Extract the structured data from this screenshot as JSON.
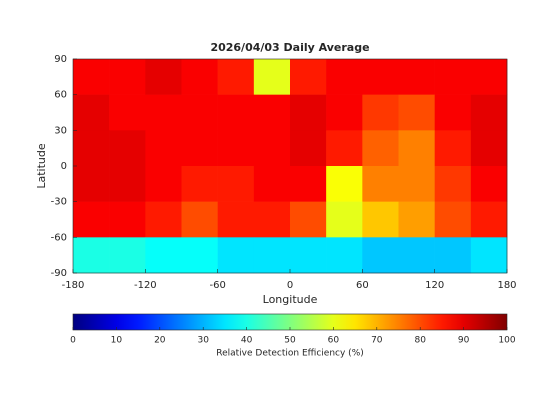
{
  "chart_data": {
    "type": "heatmap",
    "title": "2026/04/03 Daily Average",
    "xlabel": "Longitude",
    "ylabel": "Latitude",
    "xlim": [
      -180,
      180
    ],
    "xticks": [
      -180,
      -120,
      -60,
      0,
      60,
      120,
      180
    ],
    "ylim": [
      -90,
      90
    ],
    "yticks": [
      90,
      60,
      30,
      0,
      -30,
      -60,
      -90
    ],
    "lon_edges": [
      -180,
      -150,
      -120,
      -90,
      -60,
      -30,
      0,
      30,
      60,
      90,
      120,
      150,
      180
    ],
    "lat_edges": [
      90,
      60,
      30,
      0,
      -30,
      -60,
      -90
    ],
    "values": [
      [
        88,
        88,
        90,
        88,
        85,
        60,
        85,
        88,
        88,
        88,
        88,
        88
      ],
      [
        90,
        88,
        88,
        88,
        88,
        88,
        90,
        88,
        82,
        80,
        88,
        90
      ],
      [
        90,
        90,
        88,
        88,
        88,
        88,
        90,
        85,
        78,
        75,
        85,
        90
      ],
      [
        90,
        90,
        88,
        85,
        85,
        88,
        88,
        62,
        75,
        75,
        82,
        88
      ],
      [
        88,
        88,
        85,
        80,
        85,
        85,
        80,
        60,
        68,
        72,
        80,
        85
      ],
      [
        40,
        40,
        38,
        38,
        35,
        35,
        35,
        35,
        32,
        32,
        32,
        35
      ]
    ],
    "colormap": "jet",
    "clim": [
      0,
      100
    ],
    "cticks": [
      0,
      10,
      20,
      30,
      40,
      50,
      60,
      70,
      80,
      90,
      100
    ],
    "clabel": "Relative Detection Efficiency (%)"
  }
}
